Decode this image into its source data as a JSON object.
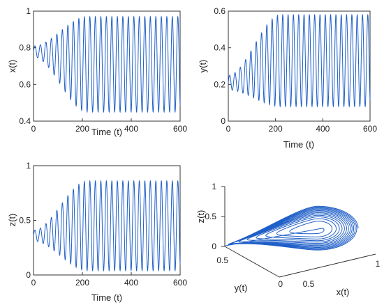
{
  "chart_data": [
    {
      "type": "line",
      "xlabel": "Time (t)",
      "ylabel": "x(t)",
      "xlim": [
        0,
        600
      ],
      "ylim": [
        0.4,
        1
      ],
      "xticks": [
        0,
        200,
        400,
        600
      ],
      "yticks": [
        0.4,
        0.6,
        0.8,
        1
      ],
      "ytick_labels": [
        "0.4",
        "0.6",
        "0.8",
        "1"
      ],
      "color": "#1f5fc8",
      "oscillation": {
        "center_start": 0.78,
        "center_end": 0.71,
        "amp_start": 0.03,
        "amp_end": 0.26,
        "growth_end_time": 220,
        "period": 22.5
      }
    },
    {
      "type": "line",
      "xlabel": "Time (t)",
      "ylabel": "y(t)",
      "xlim": [
        0,
        600
      ],
      "ylim": [
        0,
        0.6
      ],
      "xticks": [
        0,
        200,
        400,
        600
      ],
      "yticks": [
        0,
        0.2,
        0.4,
        0.6
      ],
      "ytick_labels": [
        "0",
        "0.2",
        "0.4",
        "0.6"
      ],
      "color": "#1f5fc8",
      "oscillation": {
        "center_start": 0.21,
        "center_end": 0.33,
        "amp_start": 0.04,
        "amp_end": 0.25,
        "growth_end_time": 220,
        "period": 22.5
      }
    },
    {
      "type": "line",
      "xlabel": "Time (t)",
      "ylabel": "z(t)",
      "xlim": [
        0,
        600
      ],
      "ylim": [
        0,
        1
      ],
      "xticks": [
        0,
        200,
        400,
        600
      ],
      "yticks": [
        0,
        0.5,
        1
      ],
      "ytick_labels": [
        "0",
        "0.5",
        "1"
      ],
      "color": "#1f5fc8",
      "oscillation": {
        "center_start": 0.36,
        "center_end": 0.45,
        "amp_start": 0.05,
        "amp_end": 0.41,
        "growth_end_time": 220,
        "period": 22.5
      }
    },
    {
      "type": "line",
      "subtype": "3d-phase-portrait",
      "xlabel": "x(t)",
      "ylabel": "y(t)",
      "zlabel": "z(t)",
      "xlim": [
        0,
        1
      ],
      "ylim": [
        0,
        0.5
      ],
      "zlim": [
        0,
        1
      ],
      "xtick_labels": [
        "0.5",
        "1"
      ],
      "ytick_labels": [
        "0",
        "0.5"
      ],
      "ztick_labels": [
        "0",
        "0.5",
        "1"
      ],
      "color": "#1f5fc8",
      "spiral": {
        "center": [
          0.72,
          0.33
        ],
        "radius_start": 0.03,
        "radius_end": 0.28,
        "turns": 13
      }
    }
  ]
}
